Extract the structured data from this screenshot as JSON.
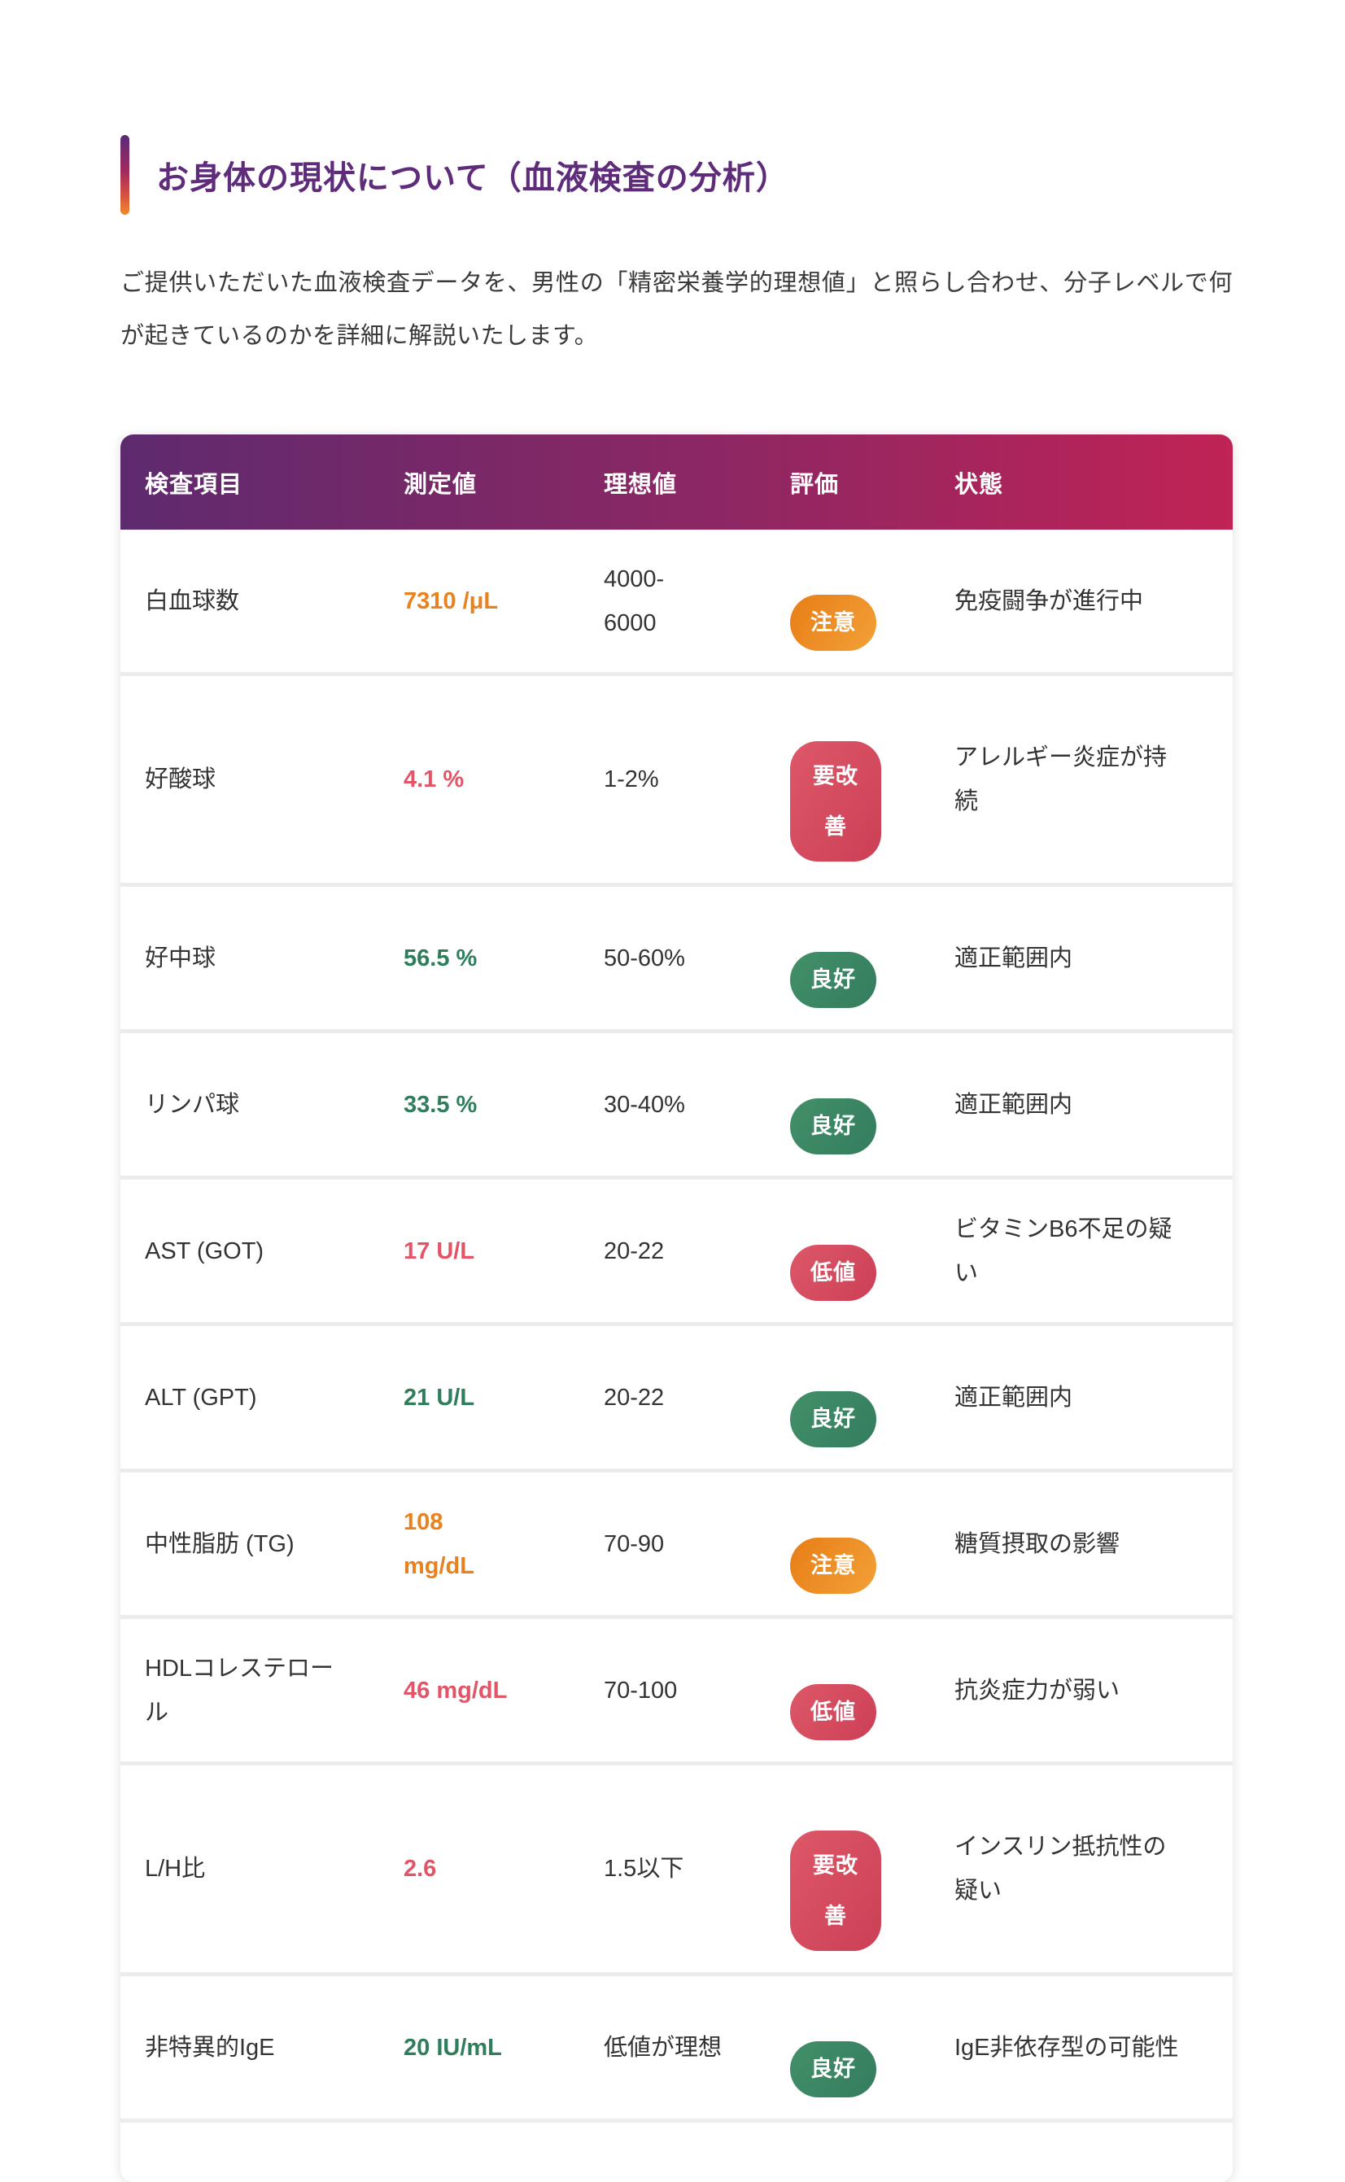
{
  "page": {
    "title": "お身体の現状について（血液検査の分析）",
    "intro": "ご提供いただいた血液検査データを、男性の「精密栄養学的理想値」と照らし合わせ、分子レベルで何が起きているのかを詳細に解説いたします。"
  },
  "colors": {
    "title_purple": "#5e2c7b",
    "header_gradient_left": "#5e2a6e",
    "header_gradient_right": "#c02355",
    "value_orange": "#e8821f",
    "value_red": "#e15567",
    "value_green": "#2e7d5b",
    "badge_orange": "#ee9027",
    "badge_green": "#3b8664",
    "badge_red": "#d54c5f",
    "accent_bar_top": "#5a2a78",
    "accent_bar_bottom": "#f08a2c"
  },
  "table": {
    "columns": [
      "検査項目",
      "測定値",
      "理想値",
      "評価",
      "状態"
    ],
    "rows": [
      {
        "item": "白血球数",
        "value": "7310 /μL",
        "value_color": "orange",
        "ideal": "4000-\n6000",
        "badge": "注意",
        "badge_color": "orange",
        "badge_wrap": false,
        "status": "免疫闘争が進行中"
      },
      {
        "item": "好酸球",
        "value": "4.1 %",
        "value_color": "red",
        "ideal": "1-2%",
        "badge": "要改善",
        "badge_color": "red",
        "badge_wrap": true,
        "status": "アレルギー炎症が持\n続"
      },
      {
        "item": "好中球",
        "value": "56.5 %",
        "value_color": "green",
        "ideal": "50-60%",
        "badge": "良好",
        "badge_color": "green",
        "badge_wrap": false,
        "status": "適正範囲内"
      },
      {
        "item": "リンパ球",
        "value": "33.5 %",
        "value_color": "green",
        "ideal": "30-40%",
        "badge": "良好",
        "badge_color": "green",
        "badge_wrap": false,
        "status": "適正範囲内"
      },
      {
        "item": "AST (GOT)",
        "value": "17 U/L",
        "value_color": "red",
        "ideal": "20-22",
        "badge": "低値",
        "badge_color": "red",
        "badge_wrap": false,
        "status": "ビタミンB6不足の疑\nい"
      },
      {
        "item": "ALT (GPT)",
        "value": "21 U/L",
        "value_color": "green",
        "ideal": "20-22",
        "badge": "良好",
        "badge_color": "green",
        "badge_wrap": false,
        "status": "適正範囲内"
      },
      {
        "item": "中性脂肪 (TG)",
        "value": "108\nmg/dL",
        "value_color": "orange",
        "ideal": "70-90",
        "badge": "注意",
        "badge_color": "orange",
        "badge_wrap": false,
        "status": "糖質摂取の影響"
      },
      {
        "item": "HDLコレステロー\nル",
        "value": "46 mg/dL",
        "value_color": "red",
        "ideal": "70-100",
        "badge": "低値",
        "badge_color": "red",
        "badge_wrap": false,
        "status": "抗炎症力が弱い"
      },
      {
        "item": "L/H比",
        "value": "2.6",
        "value_color": "red",
        "ideal": "1.5以下",
        "badge": "要改善",
        "badge_color": "red",
        "badge_wrap": true,
        "status": "インスリン抵抗性の\n疑い"
      },
      {
        "item": "非特異的IgE",
        "value": "20 IU/mL",
        "value_color": "green",
        "ideal": "低値が理想",
        "badge": "良好",
        "badge_color": "green",
        "badge_wrap": false,
        "status": "IgE非依存型の可能性"
      }
    ]
  }
}
